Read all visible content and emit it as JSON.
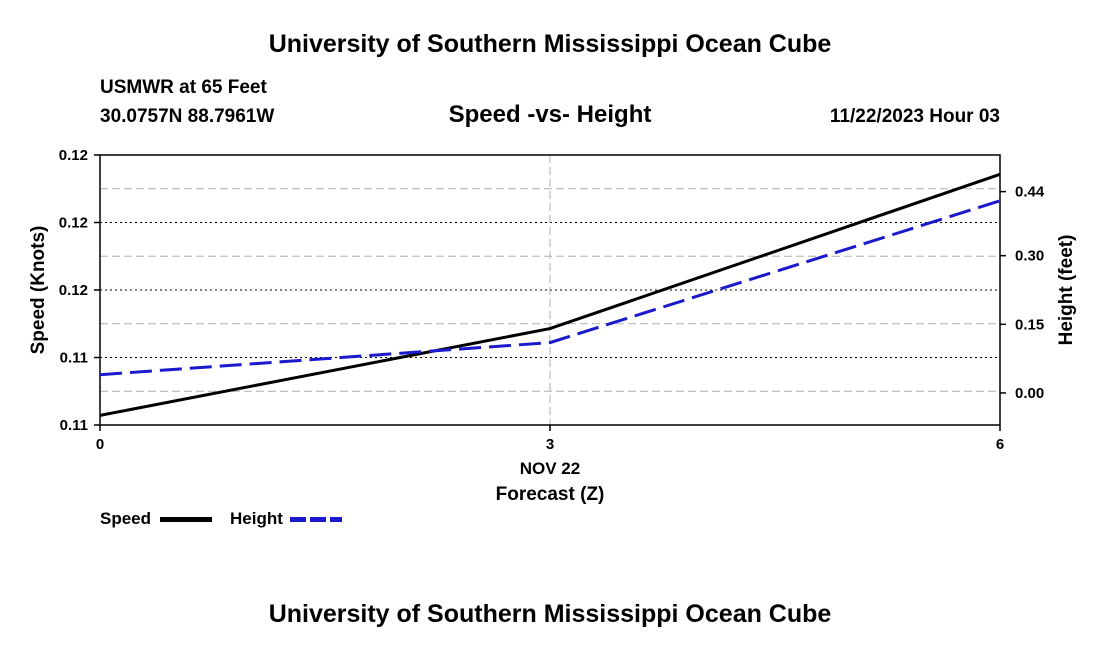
{
  "header": {
    "title": "University of Southern Mississippi Ocean Cube",
    "station": "USMWR at 65 Feet",
    "coords": "30.0757N  88.7961W",
    "subtitle": "Speed -vs- Height",
    "datetime": "11/22/2023 Hour 03"
  },
  "footer": {
    "title": "University of Southern Mississippi Ocean Cube"
  },
  "legend": {
    "speed_label": "Speed",
    "height_label": "Height"
  },
  "colors": {
    "speed": "#000000",
    "height": "#1a1acc",
    "grid": "#b0b0b0"
  },
  "chart_data": {
    "type": "line",
    "title": "Speed -vs- Height",
    "xlabel": "Forecast (Z)",
    "xlabel_date": "NOV 22",
    "x": [
      0,
      3,
      6
    ],
    "xlim": [
      0,
      6
    ],
    "x_ticks": [
      "0",
      "3",
      "6"
    ],
    "ylabel_left": "Speed (Knots)",
    "ylabel_right": "Height (feet)",
    "y_left_ticks": [
      "0.12",
      "0.12",
      "0.12",
      "0.11",
      "0.11"
    ],
    "y_right_ticks": [
      "0.44",
      "0.30",
      "0.15",
      "0.00"
    ],
    "y_right_tick_values": [
      0.44,
      0.3,
      0.15,
      0.0
    ],
    "y_right_lim": [
      -0.07,
      0.52
    ],
    "grid": true,
    "legend_position": "bottom-left",
    "series": [
      {
        "name": "Speed",
        "axis": "left",
        "style": "solid",
        "x": [
          0,
          3,
          6
        ],
        "values": [
          0.11,
          0.1109,
          0.1125
        ],
        "ylim": [
          0.1099,
          0.1127
        ]
      },
      {
        "name": "Height",
        "axis": "right",
        "style": "dashed",
        "x": [
          0,
          3,
          6
        ],
        "values": [
          0.04,
          0.11,
          0.42
        ]
      }
    ]
  }
}
